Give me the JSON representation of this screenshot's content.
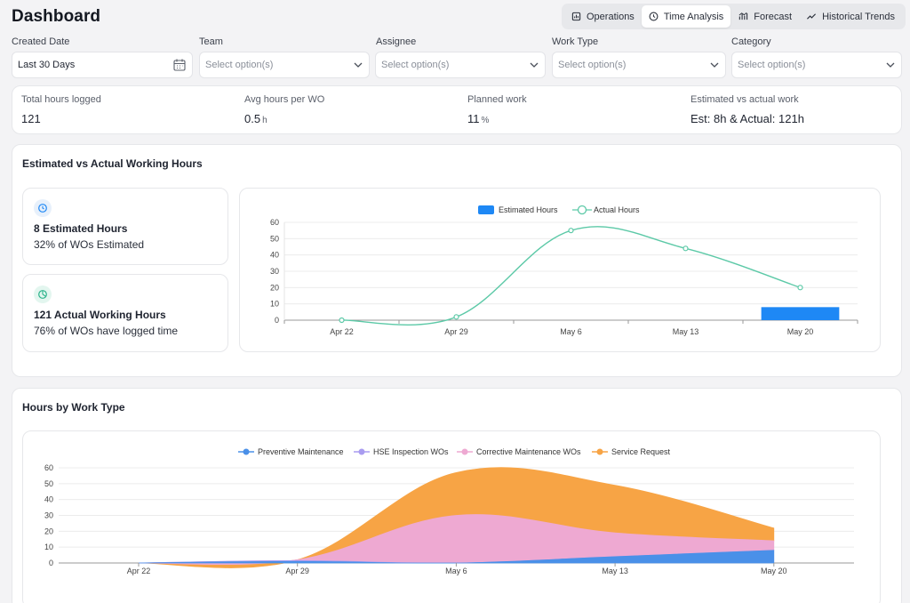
{
  "page": {
    "title": "Dashboard"
  },
  "tabs": [
    {
      "label": "Operations",
      "icon": "dashboard-icon",
      "active": false
    },
    {
      "label": "Time Analysis",
      "icon": "clock-icon",
      "active": true
    },
    {
      "label": "Forecast",
      "icon": "forecast-icon",
      "active": false
    },
    {
      "label": "Historical Trends",
      "icon": "trend-icon",
      "active": false
    }
  ],
  "filters": {
    "created_date": {
      "label": "Created Date",
      "value": "Last 30 Days"
    },
    "team": {
      "label": "Team",
      "placeholder": "Select option(s)"
    },
    "assignee": {
      "label": "Assignee",
      "placeholder": "Select option(s)"
    },
    "work_type": {
      "label": "Work Type",
      "placeholder": "Select option(s)"
    },
    "category": {
      "label": "Category",
      "placeholder": "Select option(s)"
    }
  },
  "kpis": {
    "total_hours": {
      "label": "Total hours logged",
      "value": "121"
    },
    "avg_hours": {
      "label": "Avg hours per WO",
      "value": "0.5",
      "unit": "h"
    },
    "planned": {
      "label": "Planned work",
      "value": "11",
      "unit": "%"
    },
    "est_vs_actual": {
      "label": "Estimated vs actual work",
      "value": "Est: 8h & Actual: 121h"
    }
  },
  "est_section": {
    "title": "Estimated vs Actual Working Hours",
    "estimated": {
      "big": "8 Estimated Hours",
      "sub": "32% of WOs Estimated"
    },
    "actual": {
      "big": "121 Actual Working Hours",
      "sub": "76% of WOs have logged time"
    }
  },
  "worktype_section": {
    "title": "Hours by Work Type"
  },
  "colors": {
    "estimated": "#1e88f5",
    "actual": "#5cc9a7",
    "preventive": "#4a90e8",
    "hse": "#a99cf0",
    "corrective": "#eea9d2",
    "service": "#f7a445"
  },
  "chart_data": [
    {
      "type": "bar+line",
      "categories": [
        "Apr 22",
        "Apr 29",
        "May 6",
        "May 13",
        "May 20"
      ],
      "ylim": [
        0,
        60
      ],
      "yticks": [
        0,
        10,
        20,
        30,
        40,
        50,
        60
      ],
      "legend_position": "top",
      "series": [
        {
          "name": "Estimated Hours",
          "kind": "bar",
          "values": [
            0,
            0,
            0,
            0,
            8
          ]
        },
        {
          "name": "Actual Hours",
          "kind": "line",
          "values": [
            0,
            2,
            55,
            44,
            20
          ]
        }
      ]
    },
    {
      "type": "area",
      "stacked": true,
      "categories": [
        "Apr 22",
        "Apr 29",
        "May 6",
        "May 13",
        "May 20"
      ],
      "ylim": [
        0,
        60
      ],
      "yticks": [
        0,
        10,
        20,
        30,
        40,
        50,
        60
      ],
      "legend_position": "top",
      "series": [
        {
          "name": "Preventive Maintenance",
          "values": [
            0,
            1,
            0,
            4,
            8
          ]
        },
        {
          "name": "HSE Inspection WOs",
          "values": [
            0,
            0.5,
            0,
            0,
            0
          ]
        },
        {
          "name": "Corrective Maintenance WOs",
          "values": [
            0,
            0.5,
            30,
            15,
            6
          ]
        },
        {
          "name": "Service Request",
          "values": [
            0,
            0,
            27,
            30,
            8
          ]
        }
      ]
    }
  ]
}
